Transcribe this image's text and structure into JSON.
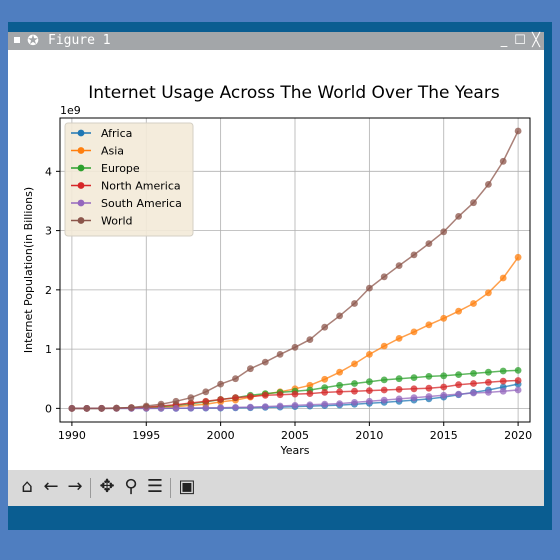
{
  "window": {
    "title": "Figure 1",
    "controls": {
      "minimize": "_",
      "maximize": "☐",
      "close": "╳"
    }
  },
  "toolbar": {
    "icons": [
      "home-icon",
      "back-icon",
      "forward-icon",
      "pan-icon",
      "zoom-icon",
      "configure-icon",
      "save-icon"
    ]
  },
  "chart_data": {
    "type": "line",
    "title": "Internet Usage Across The World Over The Years",
    "xlabel": "Years",
    "ylabel": "Internet Population(in Billions)",
    "y_offset_text": "1e9",
    "xlim": [
      1989.2,
      2020.8
    ],
    "ylim": [
      -0.23,
      4.9
    ],
    "x_ticks": [
      1990,
      1995,
      2000,
      2005,
      2010,
      2015,
      2020
    ],
    "y_ticks": [
      0,
      1,
      2,
      3,
      4
    ],
    "grid": true,
    "legend_position": "top-left",
    "x": [
      1990,
      1991,
      1992,
      1993,
      1994,
      1995,
      1996,
      1997,
      1998,
      1999,
      2000,
      2001,
      2002,
      2003,
      2004,
      2005,
      2006,
      2007,
      2008,
      2009,
      2010,
      2011,
      2012,
      2013,
      2014,
      2015,
      2016,
      2017,
      2018,
      2019,
      2020
    ],
    "series": [
      {
        "name": "Africa",
        "color": "#1f77b4",
        "values": [
          0,
          0,
          0,
          0,
          0,
          0,
          0.001,
          0.002,
          0.003,
          0.004,
          0.005,
          0.008,
          0.012,
          0.016,
          0.022,
          0.03,
          0.038,
          0.046,
          0.056,
          0.07,
          0.085,
          0.1,
          0.12,
          0.14,
          0.16,
          0.19,
          0.23,
          0.27,
          0.31,
          0.36,
          0.41
        ]
      },
      {
        "name": "Asia",
        "color": "#ff7f0e",
        "values": [
          0,
          0,
          0,
          0,
          0.005,
          0.01,
          0.02,
          0.03,
          0.05,
          0.07,
          0.11,
          0.14,
          0.19,
          0.24,
          0.28,
          0.33,
          0.39,
          0.49,
          0.61,
          0.75,
          0.91,
          1.05,
          1.18,
          1.29,
          1.41,
          1.52,
          1.64,
          1.77,
          1.95,
          2.2,
          2.55
        ]
      },
      {
        "name": "Europe",
        "color": "#2ca02c",
        "values": [
          0,
          0,
          0,
          0.005,
          0.01,
          0.02,
          0.03,
          0.05,
          0.08,
          0.11,
          0.15,
          0.18,
          0.22,
          0.25,
          0.27,
          0.29,
          0.31,
          0.35,
          0.39,
          0.42,
          0.45,
          0.48,
          0.5,
          0.52,
          0.54,
          0.55,
          0.57,
          0.59,
          0.61,
          0.63,
          0.64
        ]
      },
      {
        "name": "North America",
        "color": "#d62728",
        "values": [
          0,
          0,
          0.002,
          0.005,
          0.01,
          0.02,
          0.04,
          0.06,
          0.09,
          0.12,
          0.15,
          0.18,
          0.2,
          0.22,
          0.23,
          0.24,
          0.25,
          0.27,
          0.28,
          0.29,
          0.3,
          0.31,
          0.32,
          0.33,
          0.34,
          0.36,
          0.4,
          0.42,
          0.44,
          0.46,
          0.47
        ]
      },
      {
        "name": "South America",
        "color": "#9467bd",
        "values": [
          0,
          0,
          0,
          0,
          0,
          0,
          0,
          0.002,
          0.005,
          0.008,
          0.012,
          0.017,
          0.022,
          0.03,
          0.04,
          0.05,
          0.06,
          0.07,
          0.08,
          0.1,
          0.12,
          0.14,
          0.16,
          0.18,
          0.2,
          0.22,
          0.24,
          0.26,
          0.27,
          0.29,
          0.31
        ]
      },
      {
        "name": "World",
        "color": "#8c564b",
        "values": [
          0,
          0,
          0,
          0.005,
          0.015,
          0.04,
          0.07,
          0.12,
          0.18,
          0.28,
          0.41,
          0.5,
          0.67,
          0.78,
          0.91,
          1.03,
          1.16,
          1.37,
          1.56,
          1.77,
          2.03,
          2.22,
          2.41,
          2.59,
          2.78,
          2.98,
          3.24,
          3.47,
          3.78,
          4.17,
          4.68
        ]
      }
    ]
  }
}
